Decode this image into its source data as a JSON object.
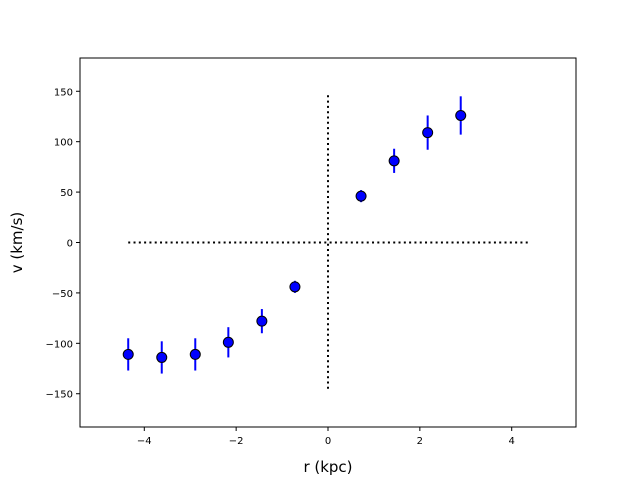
{
  "chart_data": {
    "type": "scatter",
    "title": "",
    "xlabel": "r (kpc)",
    "ylabel": "v (km/s)",
    "xlim": [
      -5.4,
      5.4
    ],
    "ylim": [
      -183,
      183
    ],
    "xticks": [
      -4,
      -2,
      0,
      2,
      4
    ],
    "yticks": [
      -150,
      -100,
      -50,
      0,
      50,
      100,
      150
    ],
    "grid": false,
    "legend": "none",
    "series": [
      {
        "marker": "circle",
        "marker_color": "#0000ff",
        "marker_edge_color": "#000000",
        "errorbar_color": "#0000ff",
        "points": [
          {
            "x": -4.35,
            "y": -111,
            "err": 16
          },
          {
            "x": -3.62,
            "y": -114,
            "err": 16
          },
          {
            "x": -2.89,
            "y": -111,
            "err": 16
          },
          {
            "x": -2.17,
            "y": -99,
            "err": 15
          },
          {
            "x": -1.44,
            "y": -78,
            "err": 12
          },
          {
            "x": -0.72,
            "y": -44,
            "err": 6
          },
          {
            "x": 0.72,
            "y": 46,
            "err": 6
          },
          {
            "x": 1.44,
            "y": 81,
            "err": 12
          },
          {
            "x": 2.17,
            "y": 109,
            "err": 17
          },
          {
            "x": 2.89,
            "y": 126,
            "err": 19
          }
        ]
      }
    ],
    "reference_lines": [
      {
        "orientation": "horizontal",
        "value": 0,
        "from": -4.35,
        "to": 4.35,
        "style": "dotted",
        "color": "#000000"
      },
      {
        "orientation": "vertical",
        "value": 0,
        "from": -146,
        "to": 146,
        "style": "dotted",
        "color": "#000000"
      }
    ]
  }
}
